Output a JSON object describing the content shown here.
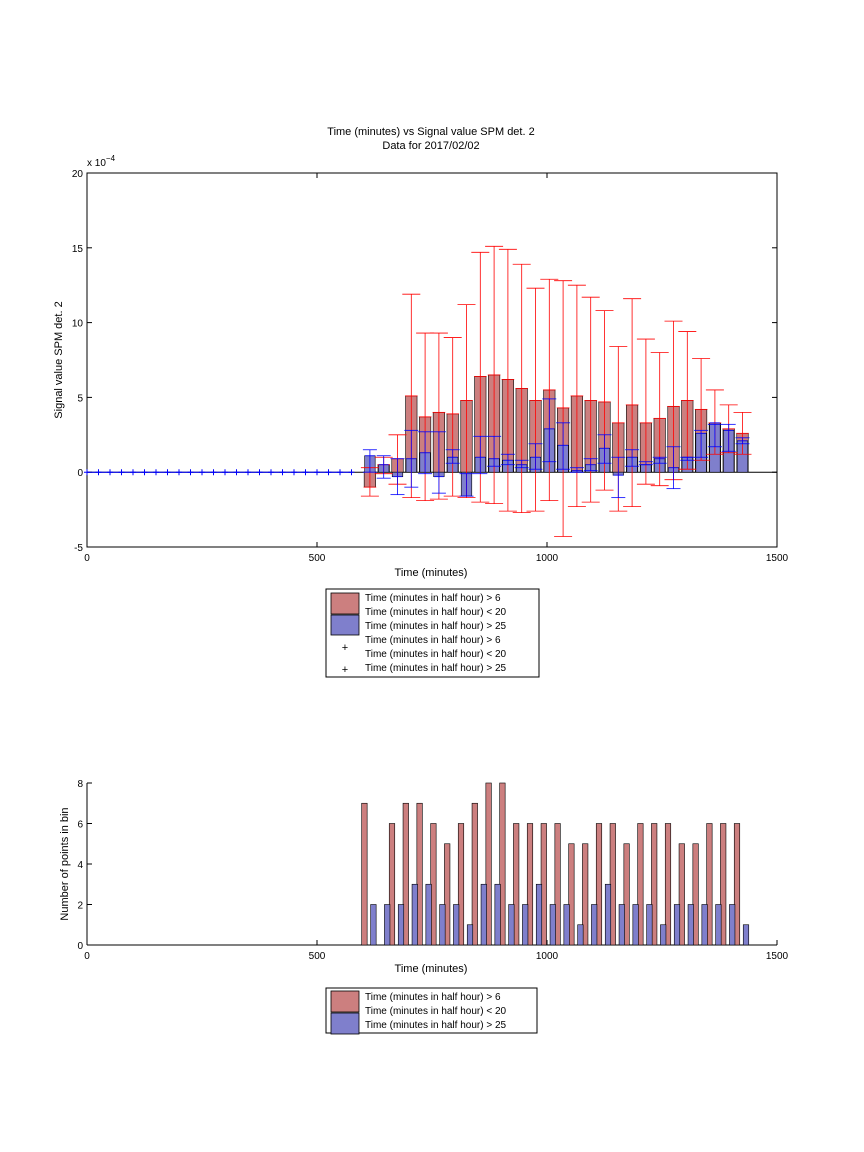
{
  "colors": {
    "bar_red_fill": "#cc7f7f",
    "bar_blue_fill": "#7f7fcc",
    "err_red": "#ff0000",
    "err_blue": "#0000ff",
    "marker_blue": "#0000ff"
  },
  "chart_data": [
    {
      "type": "bar",
      "title": "Time (minutes) vs Signal value SPM det. 2",
      "subtitle": "Data for 2017/02/02",
      "xlabel": "Time (minutes)",
      "ylabel": "Signal value SPM det. 2",
      "exponent_label": "x 10",
      "exponent_power": "−4",
      "xlim": [
        0,
        1500
      ],
      "ylim": [
        -5,
        20
      ],
      "xticks": [
        "0",
        "500",
        "1000",
        "1500"
      ],
      "yticks": [
        "-5",
        "0",
        "5",
        "10",
        "15",
        "20"
      ],
      "legend": {
        "placement": "bottom-center",
        "entries": [
          {
            "label": "Time (minutes in half hour) > 6"
          },
          {
            "label": "Time (minutes in half hour) < 20"
          },
          {
            "label": "Time (minutes in half hour) > 25"
          },
          {
            "label": "Time (minutes in half hour) > 6"
          },
          {
            "label": "Time (minutes in half hour) < 20"
          },
          {
            "label": "Time (minutes in half hour) > 25"
          }
        ]
      },
      "x": [
        615,
        645,
        675,
        705,
        735,
        765,
        795,
        825,
        855,
        885,
        915,
        945,
        975,
        1005,
        1035,
        1065,
        1095,
        1125,
        1155,
        1185,
        1215,
        1245,
        1275,
        1305,
        1335,
        1365,
        1395,
        1425
      ],
      "series": [
        {
          "values": [
            -1.0,
            0.5,
            0.9,
            5.1,
            3.7,
            4.0,
            3.9,
            4.8,
            6.4,
            6.5,
            6.2,
            5.6,
            4.8,
            5.5,
            4.3,
            5.1,
            4.8,
            4.7,
            3.3,
            4.5,
            3.3,
            3.6,
            4.4,
            4.8,
            4.2,
            3.3,
            2.9,
            2.6
          ],
          "err_high": [
            0.3,
            1.0,
            2.5,
            11.9,
            9.3,
            9.3,
            9.0,
            11.2,
            14.7,
            15.1,
            14.9,
            13.9,
            12.3,
            12.9,
            12.8,
            12.5,
            11.7,
            10.8,
            8.4,
            11.6,
            8.9,
            8.0,
            10.1,
            9.4,
            7.6,
            5.5,
            4.5,
            4.0
          ],
          "err_low": [
            -1.6,
            -0.1,
            -0.8,
            -1.7,
            -1.9,
            -1.8,
            -1.6,
            -1.7,
            -2.0,
            -2.1,
            -2.6,
            -2.7,
            -2.6,
            -1.9,
            -4.3,
            -2.3,
            -2.0,
            -1.2,
            -2.6,
            -2.3,
            -0.8,
            -0.9,
            -0.5,
            0.2,
            0.8,
            1.2,
            1.3,
            1.2
          ]
        },
        {
          "values": [
            1.1,
            0.5,
            -0.3,
            0.9,
            1.3,
            -0.3,
            1.0,
            -1.6,
            1.0,
            0.9,
            0.8,
            0.5,
            1.0,
            2.9,
            1.8,
            0.1,
            0.5,
            1.6,
            -0.2,
            1.0,
            0.5,
            0.9,
            0.3,
            1.0,
            2.6,
            3.3,
            2.8,
            2.1
          ],
          "err_high": [
            1.5,
            1.1,
            0.9,
            2.8,
            2.7,
            2.7,
            1.5,
            -0.1,
            2.4,
            2.4,
            1.2,
            0.8,
            1.9,
            4.9,
            3.3,
            0.3,
            0.9,
            2.5,
            1.0,
            1.5,
            0.7,
            1.0,
            1.7,
            1.0,
            2.8,
            3.2,
            3.2,
            2.3
          ],
          "err_low": [
            0.0,
            -0.4,
            -1.5,
            -1.0,
            -0.1,
            -1.4,
            0.6,
            -1.6,
            -0.1,
            0.4,
            0.5,
            0.3,
            0.2,
            0.7,
            0.2,
            0.0,
            0.1,
            0.6,
            -1.7,
            0.4,
            0.5,
            0.6,
            -1.1,
            0.8,
            1.0,
            1.7,
            1.4,
            1.9
          ]
        }
      ],
      "markers": {
        "x": [
          0,
          25,
          50,
          75,
          100,
          125,
          150,
          175,
          200,
          225,
          250,
          275,
          300,
          325,
          350,
          375,
          400,
          425,
          450,
          475,
          500,
          525,
          550,
          575
        ],
        "y": [
          0,
          0,
          0,
          0,
          0,
          0,
          0,
          0,
          0,
          0,
          0,
          0,
          0,
          0,
          0,
          0,
          0,
          0,
          0,
          0,
          0,
          0,
          0,
          0
        ]
      }
    },
    {
      "type": "bar",
      "xlabel": "Time (minutes)",
      "ylabel": "Number of points in bin",
      "xlim": [
        0,
        1500
      ],
      "ylim": [
        0,
        8
      ],
      "xticks": [
        "0",
        "500",
        "1000",
        "1500"
      ],
      "yticks": [
        "0",
        "2",
        "4",
        "6",
        "8"
      ],
      "legend": {
        "placement": "bottom-center",
        "entries": [
          {
            "label": "Time (minutes in half hour) > 6"
          },
          {
            "label": "Time (minutes in half hour) < 20"
          },
          {
            "label": "Time (minutes in half hour) > 25"
          }
        ]
      },
      "x": [
        615,
        645,
        675,
        705,
        735,
        765,
        795,
        825,
        855,
        885,
        915,
        945,
        975,
        1005,
        1035,
        1065,
        1095,
        1125,
        1155,
        1185,
        1215,
        1245,
        1275,
        1305,
        1335,
        1365,
        1395,
        1425
      ],
      "series": [
        {
          "values": [
            7,
            0,
            6,
            7,
            7,
            6,
            5,
            6,
            7,
            8,
            8,
            6,
            6,
            6,
            6,
            5,
            5,
            6,
            6,
            5,
            6,
            6,
            6,
            5,
            5,
            6,
            6,
            6
          ]
        },
        {
          "values": [
            2,
            2,
            2,
            3,
            3,
            2,
            2,
            1,
            3,
            3,
            2,
            2,
            3,
            2,
            2,
            1,
            2,
            3,
            2,
            2,
            2,
            1,
            2,
            2,
            2,
            2,
            2,
            1
          ]
        }
      ]
    }
  ]
}
